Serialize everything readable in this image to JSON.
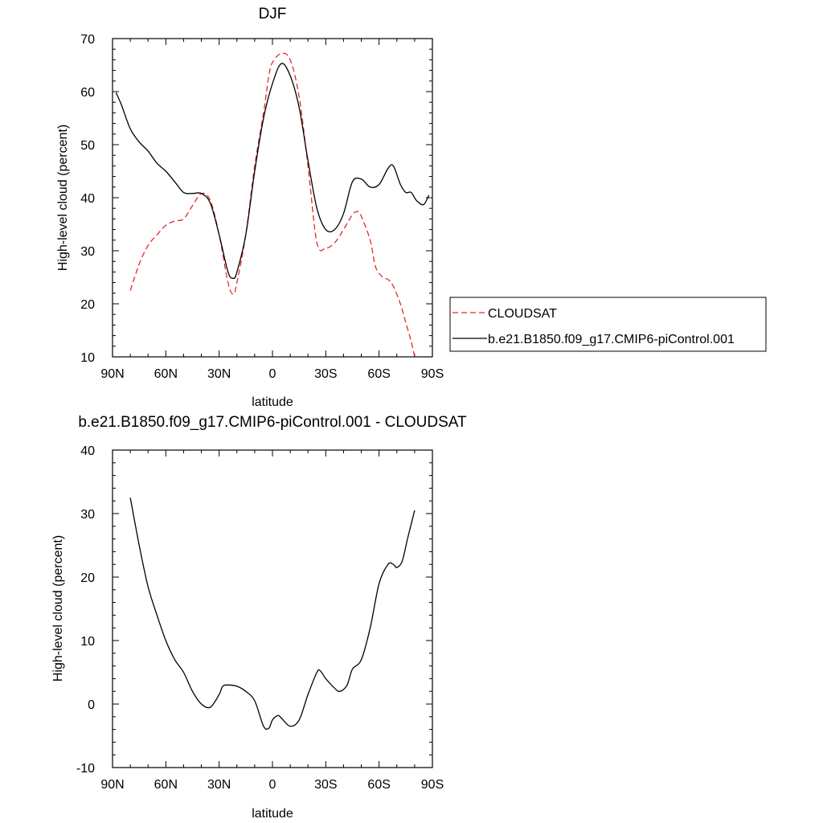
{
  "chart_data": [
    {
      "type": "line",
      "title": "DJF",
      "xlabel": "latitude",
      "ylabel": "High-level cloud (percent)",
      "xlim": [
        -90,
        90
      ],
      "ylim": [
        10,
        70
      ],
      "xticks": [
        -90,
        -60,
        -30,
        0,
        30,
        60,
        90
      ],
      "xticklabels": [
        "90N",
        "60N",
        "30N",
        "0",
        "30S",
        "60S",
        "90S"
      ],
      "yticks": [
        10,
        20,
        30,
        40,
        50,
        60,
        70
      ],
      "yticklabels": [
        "10",
        "20",
        "30",
        "40",
        "50",
        "60",
        "70"
      ],
      "legend_position": "right",
      "series": [
        {
          "name": "CLOUDSAT",
          "color": "#e8262b",
          "dash": "dashed",
          "points": [
            [
              -80,
              22.5
            ],
            [
              -75,
              27.5
            ],
            [
              -70,
              31
            ],
            [
              -65,
              33
            ],
            [
              -60,
              34.8
            ],
            [
              -55,
              35.6
            ],
            [
              -50,
              36
            ],
            [
              -45,
              38.5
            ],
            [
              -40,
              40.8
            ],
            [
              -35,
              39.5
            ],
            [
              -30,
              33
            ],
            [
              -25,
              24
            ],
            [
              -22,
              21.8
            ],
            [
              -20,
              24
            ],
            [
              -15,
              33
            ],
            [
              -10,
              46
            ],
            [
              -5,
              56
            ],
            [
              -2,
              63
            ],
            [
              0,
              65.5
            ],
            [
              5,
              67.2
            ],
            [
              10,
              66
            ],
            [
              15,
              59
            ],
            [
              20,
              46
            ],
            [
              25,
              31.5
            ],
            [
              30,
              30.5
            ],
            [
              35,
              31.5
            ],
            [
              40,
              34
            ],
            [
              45,
              36.8
            ],
            [
              48,
              37.4
            ],
            [
              50,
              36.5
            ],
            [
              55,
              32
            ],
            [
              58,
              27
            ],
            [
              62,
              25
            ],
            [
              65,
              24.6
            ],
            [
              68,
              23.3
            ],
            [
              72,
              20
            ],
            [
              75,
              16.5
            ],
            [
              78,
              13
            ],
            [
              80,
              10
            ]
          ]
        },
        {
          "name": "b.e21.B1850.f09_g17.CMIP6-piControl.001",
          "color": "#000000",
          "dash": "solid",
          "points": [
            [
              -88,
              59.8
            ],
            [
              -85,
              57.5
            ],
            [
              -80,
              53
            ],
            [
              -75,
              50.5
            ],
            [
              -70,
              48.8
            ],
            [
              -65,
              46.5
            ],
            [
              -60,
              45
            ],
            [
              -55,
              43
            ],
            [
              -50,
              41
            ],
            [
              -45,
              40.8
            ],
            [
              -40,
              40.8
            ],
            [
              -35,
              39
            ],
            [
              -30,
              33
            ],
            [
              -25,
              26
            ],
            [
              -22,
              24.8
            ],
            [
              -20,
              26
            ],
            [
              -15,
              33
            ],
            [
              -10,
              45
            ],
            [
              -5,
              55
            ],
            [
              0,
              61.5
            ],
            [
              5,
              65.3
            ],
            [
              10,
              63
            ],
            [
              15,
              57
            ],
            [
              20,
              47
            ],
            [
              25,
              38
            ],
            [
              30,
              34
            ],
            [
              35,
              34
            ],
            [
              40,
              37
            ],
            [
              45,
              43
            ],
            [
              50,
              43.5
            ],
            [
              55,
              42
            ],
            [
              60,
              42.5
            ],
            [
              65,
              45.5
            ],
            [
              68,
              46
            ],
            [
              72,
              42.5
            ],
            [
              75,
              41
            ],
            [
              78,
              41
            ],
            [
              81,
              39.5
            ],
            [
              85,
              38.7
            ],
            [
              88,
              40.5
            ]
          ]
        }
      ]
    },
    {
      "type": "line",
      "title": "b.e21.B1850.f09_g17.CMIP6-piControl.001 - CLOUDSAT",
      "xlabel": "latitude",
      "ylabel": "High-level cloud (percent)",
      "xlim": [
        -90,
        90
      ],
      "ylim": [
        -10,
        40
      ],
      "xticks": [
        -90,
        -60,
        -30,
        0,
        30,
        60,
        90
      ],
      "xticklabels": [
        "90N",
        "60N",
        "30N",
        "0",
        "30S",
        "60S",
        "90S"
      ],
      "yticks": [
        -10,
        0,
        10,
        20,
        30,
        40
      ],
      "yticklabels": [
        "-10",
        "0",
        "10",
        "20",
        "30",
        "40"
      ],
      "series": [
        {
          "color": "#000000",
          "dash": "solid",
          "points": [
            [
              -80,
              32.5
            ],
            [
              -75,
              25
            ],
            [
              -70,
              18.5
            ],
            [
              -65,
              14
            ],
            [
              -60,
              10
            ],
            [
              -55,
              7
            ],
            [
              -50,
              5
            ],
            [
              -45,
              2
            ],
            [
              -40,
              0
            ],
            [
              -35,
              -0.5
            ],
            [
              -30,
              1.5
            ],
            [
              -28,
              2.8
            ],
            [
              -25,
              3
            ],
            [
              -20,
              2.8
            ],
            [
              -15,
              2
            ],
            [
              -10,
              0.5
            ],
            [
              -5,
              -3.5
            ],
            [
              -2,
              -3.8
            ],
            [
              0,
              -2.5
            ],
            [
              3,
              -1.8
            ],
            [
              5,
              -2.2
            ],
            [
              10,
              -3.5
            ],
            [
              15,
              -2.5
            ],
            [
              20,
              1.5
            ],
            [
              25,
              5
            ],
            [
              27,
              5.2
            ],
            [
              30,
              4
            ],
            [
              35,
              2.5
            ],
            [
              38,
              2
            ],
            [
              42,
              3
            ],
            [
              45,
              5.5
            ],
            [
              50,
              7
            ],
            [
              55,
              12
            ],
            [
              60,
              19
            ],
            [
              65,
              22
            ],
            [
              68,
              22
            ],
            [
              70,
              21.5
            ],
            [
              73,
              22.5
            ],
            [
              76,
              26
            ],
            [
              80,
              30.5
            ]
          ]
        }
      ]
    }
  ]
}
